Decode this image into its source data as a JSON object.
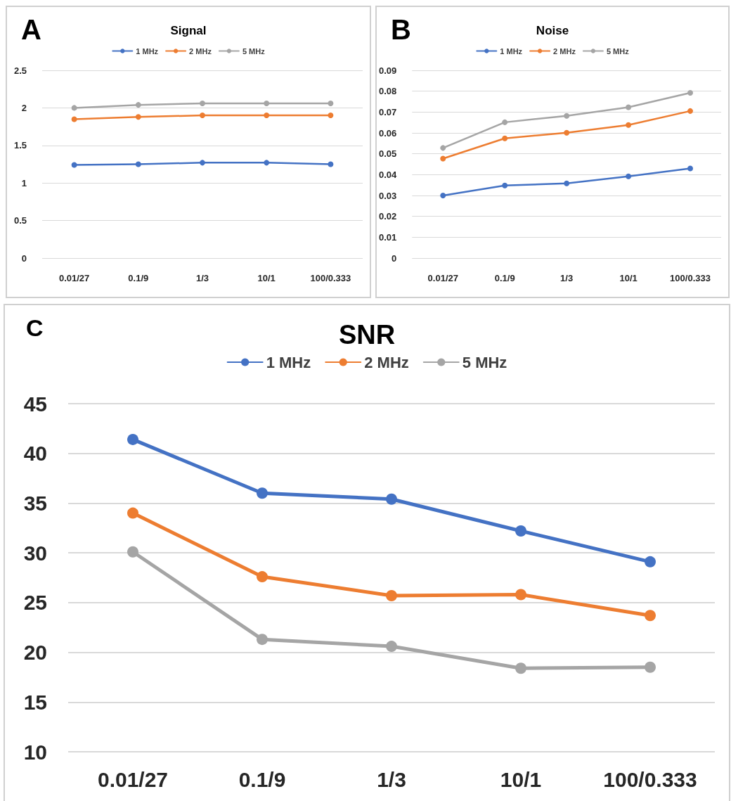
{
  "chart_data": [
    {
      "type": "line",
      "title": "Signal",
      "annotations": [
        "A"
      ],
      "categories": [
        "0.01/27",
        "0.1/9",
        "1/3",
        "10/1",
        "100/0.333"
      ],
      "series": [
        {
          "name": "1 MHz",
          "color": "#4472c4",
          "values": [
            1.24,
            1.25,
            1.27,
            1.27,
            1.25
          ]
        },
        {
          "name": "2 MHz",
          "color": "#ed7d31",
          "values": [
            1.85,
            1.88,
            1.9,
            1.9,
            1.9
          ]
        },
        {
          "name": "5 MHz",
          "color": "#a5a5a5",
          "values": [
            2.0,
            2.04,
            2.06,
            2.06,
            2.06
          ]
        }
      ],
      "ylim": [
        0,
        2.5
      ],
      "yticks": [
        0,
        0.5,
        1,
        1.5,
        2,
        2.5
      ],
      "grid": "y",
      "legend": "top",
      "marker": "circle",
      "line_style": "solid"
    },
    {
      "type": "line",
      "title": "Noise",
      "annotations": [
        "B"
      ],
      "categories": [
        "0.01/27",
        "0.1/9",
        "1/3",
        "10/1",
        "100/0.333"
      ],
      "series": [
        {
          "name": "1 MHz",
          "color": "#4472c4",
          "values": [
            0.03,
            0.0348,
            0.0358,
            0.0392,
            0.043
          ]
        },
        {
          "name": "2 MHz",
          "color": "#ed7d31",
          "values": [
            0.0477,
            0.0574,
            0.0601,
            0.0638,
            0.0705
          ]
        },
        {
          "name": "5 MHz",
          "color": "#a5a5a5",
          "values": [
            0.0528,
            0.0651,
            0.0682,
            0.0723,
            0.0792
          ]
        }
      ],
      "ylim": [
        0,
        0.09
      ],
      "yticks": [
        0,
        0.01,
        0.02,
        0.03,
        0.04,
        0.05,
        0.06,
        0.07,
        0.08,
        0.09
      ],
      "grid": "y",
      "legend": "top",
      "marker": "circle",
      "line_style": "solid"
    },
    {
      "type": "line",
      "title": "SNR",
      "annotations": [
        "C"
      ],
      "categories": [
        "0.01/27",
        "0.1/9",
        "1/3",
        "10/1",
        "100/0.333"
      ],
      "series": [
        {
          "name": "1 MHz",
          "color": "#4472c4",
          "values": [
            41.4,
            36,
            35.4,
            32.2,
            29.1
          ]
        },
        {
          "name": "2 MHz",
          "color": "#ed7d31",
          "values": [
            34,
            27.6,
            25.7,
            25.8,
            23.7
          ]
        },
        {
          "name": "5 MHz",
          "color": "#a5a5a5",
          "values": [
            30.1,
            21.3,
            20.6,
            18.4,
            18.5
          ]
        }
      ],
      "ylim": [
        10,
        45
      ],
      "yticks": [
        10,
        15,
        20,
        25,
        30,
        35,
        40,
        45
      ],
      "grid": "y",
      "legend": "top",
      "marker": "circle",
      "line_style": "solid"
    }
  ]
}
